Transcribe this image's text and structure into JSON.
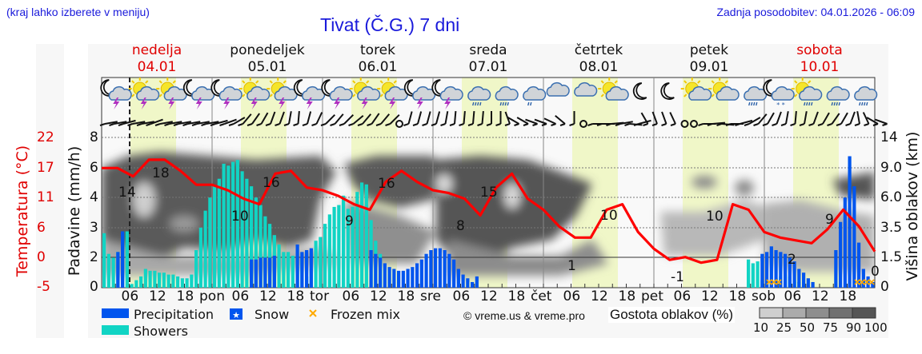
{
  "header": {
    "location_hint": "(kraj lahko izberete v meniju)",
    "title": "Tivat (Č.G.) 7 dni",
    "last_update": "Zadnja posodobitev: 04.01.2026 - 06:09"
  },
  "days": [
    {
      "name": "nedelja",
      "date": "04.01",
      "weekend": true
    },
    {
      "name": "ponedeljek",
      "date": "05.01",
      "weekend": false
    },
    {
      "name": "torek",
      "date": "06.01",
      "weekend": false
    },
    {
      "name": "sreda",
      "date": "07.01",
      "weekend": false
    },
    {
      "name": "četrtek",
      "date": "08.01",
      "weekend": false
    },
    {
      "name": "petek",
      "date": "09.01",
      "weekend": false
    },
    {
      "name": "sobota",
      "date": "10.01",
      "weekend": true
    }
  ],
  "weather_icons": [
    "moon-cloud-thunder",
    "sun-cloud-thunder",
    "sun-cloud-thunder",
    "moon-cloud-thunder",
    "moon-cloud-thunder",
    "sun-cloud-thunder",
    "sun-cloud-thunder",
    "moon-cloud-thunder",
    "moon-cloud-thunder",
    "sun-cloud-thunder",
    "sun-cloud-thunder",
    "moon-cloud-thunder",
    "moon-cloud-thunder",
    "cloud-rain",
    "cloud-rain",
    "cloud-light-rain",
    "cloud",
    "cloud",
    "sun-cloud",
    "moon",
    "moon",
    "sun-cloud",
    "sun-cloud",
    "cloud-rain",
    "moon-cloud-snow",
    "sun-cloud-rain",
    "cloud-rain",
    "cloud-sleet"
  ],
  "axes": {
    "left_temp_label": "Temperatura (°C)",
    "left_temp_ticks": [
      "22",
      "17",
      "11",
      "6",
      "0",
      "-5"
    ],
    "left_precip_label": "Padavine (mm/h)",
    "left_precip_ticks": [
      "8",
      "6",
      "4",
      "3",
      "2",
      "0"
    ],
    "right_cloud_label": "Višina oblakov (km)",
    "right_cloud_ticks": [
      "14",
      "9.0",
      "6.0",
      "3.5",
      "1.5",
      "0"
    ],
    "x_ticks": [
      "06",
      "12",
      "18",
      "pon",
      "06",
      "12",
      "18",
      "tor",
      "06",
      "12",
      "18",
      "sre",
      "06",
      "12",
      "18",
      "čet",
      "06",
      "12",
      "18",
      "pet",
      "06",
      "12",
      "18",
      "sob",
      "06",
      "12",
      "18"
    ]
  },
  "legend": {
    "precipitation": "Precipitation",
    "snow": "Snow",
    "frozen_mix": "Frozen mix",
    "showers": "Showers",
    "copyright": "© vreme.us & vreme.pro",
    "cloud_density_label": "Gostota oblakov (%)",
    "cloud_density_steps": [
      "10",
      "25",
      "50",
      "75",
      "90",
      "100"
    ]
  },
  "colors": {
    "temperature": "#ff0000",
    "precipitation": "#0055ee",
    "showers": "#11d4c4",
    "frozen_mix": "#ffaa00",
    "daylight": "#f0f7c8",
    "link_blue": "#1a1adb",
    "weekend_red": "#e00000"
  },
  "chart_data": {
    "type": "line+bar",
    "title": "Tivat (Č.G.) 7 dni",
    "xlabel": "",
    "ylabel_left_1": "Temperatura (°C)",
    "ylabel_left_2": "Padavine (mm/h)",
    "ylabel_right": "Višina oblakov (km)",
    "temp_ylim": [
      -5,
      22
    ],
    "precip_ylim": [
      0,
      8
    ],
    "temperature_labels": [
      {
        "day": "nedelja 03h",
        "value": 14
      },
      {
        "day": "nedelja 12h",
        "value": 18
      },
      {
        "day": "ponedeljek 06h",
        "value": 10
      },
      {
        "day": "ponedeljek 12h",
        "value": 16
      },
      {
        "day": "torek 06h",
        "value": 9
      },
      {
        "day": "torek 12h",
        "value": 16
      },
      {
        "day": "sreda 06h",
        "value": 8
      },
      {
        "day": "sreda 12h",
        "value": 15
      },
      {
        "day": "četrtek 06h",
        "value": 1
      },
      {
        "day": "četrtek 12h",
        "value": 10
      },
      {
        "day": "petek 06h",
        "value": -1
      },
      {
        "day": "petek 12h",
        "value": 10
      },
      {
        "day": "sobota 06h",
        "value": 2
      },
      {
        "day": "sobota 12h",
        "value": 9
      },
      {
        "day": "sobota 24h",
        "value": 0
      }
    ],
    "temperature_series_hourly_3h": [
      16.5,
      16.5,
      15,
      18,
      18,
      16,
      13.5,
      13.5,
      12.5,
      11,
      10,
      15.5,
      16,
      13,
      12.5,
      11.5,
      10,
      9,
      14,
      16,
      14,
      12.5,
      12,
      11,
      8,
      13,
      15.5,
      11,
      9,
      6,
      4,
      4,
      9,
      10,
      5,
      2,
      0,
      0.5,
      -0.5,
      0,
      10,
      9,
      5,
      4,
      3.5,
      3,
      5.5,
      9,
      6,
      1.5
    ],
    "precip_scale_note": "bars: precipitation (blue) and showers (cyan), mm/h, peak ~7 mm/h on sobota evening",
    "series": [
      {
        "name": "Precipitation",
        "color": "#0055ee"
      },
      {
        "name": "Showers",
        "color": "#11d4c4"
      },
      {
        "name": "Snow",
        "color": "#0055ee"
      },
      {
        "name": "Frozen mix",
        "color": "#ffaa00"
      },
      {
        "name": "Temperature",
        "color": "#ff0000"
      }
    ],
    "grid": true,
    "legend_position": "bottom"
  }
}
